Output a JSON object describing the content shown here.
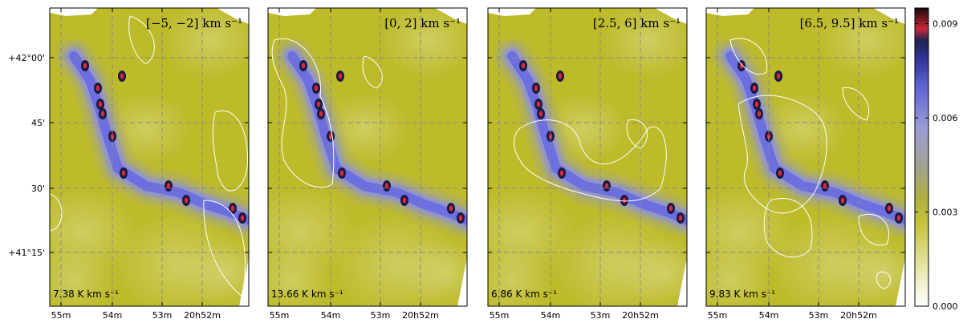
{
  "chart_data": {
    "type": "heatmap",
    "panels": [
      {
        "title": "[−5, −2] km s⁻¹",
        "contour_level": "7.38 K km s⁻¹"
      },
      {
        "title": "[0, 2] km s⁻¹",
        "contour_level": "13.66 K km s⁻¹"
      },
      {
        "title": "[2.5, 6] km s⁻¹",
        "contour_level": "6.86 K km s⁻¹"
      },
      {
        "title": "[6.5, 9.5] km s⁻¹",
        "contour_level": "9.83 K km s⁻¹"
      }
    ],
    "x_ticks": [
      "55m",
      "54m",
      "53m",
      "20h52m"
    ],
    "y_ticks": [
      "+42°00'",
      "45'",
      "30'",
      "+41°15'"
    ],
    "colorbar": {
      "range": [
        0.0,
        0.0095
      ],
      "ticks": [
        "0.000",
        "0.003",
        "0.006",
        "0.009"
      ],
      "colors": [
        "#ffffff",
        "#e6e6a8",
        "#b7b822",
        "#a0a090",
        "#8a8fd8",
        "#5a5fd0",
        "#2a2f8a",
        "#d0303a",
        "#1a0a0a"
      ]
    },
    "grid": true,
    "filament_color": "#6b6fe0",
    "background_color": "#bdbb2a",
    "contour_color": "#ffffff"
  }
}
